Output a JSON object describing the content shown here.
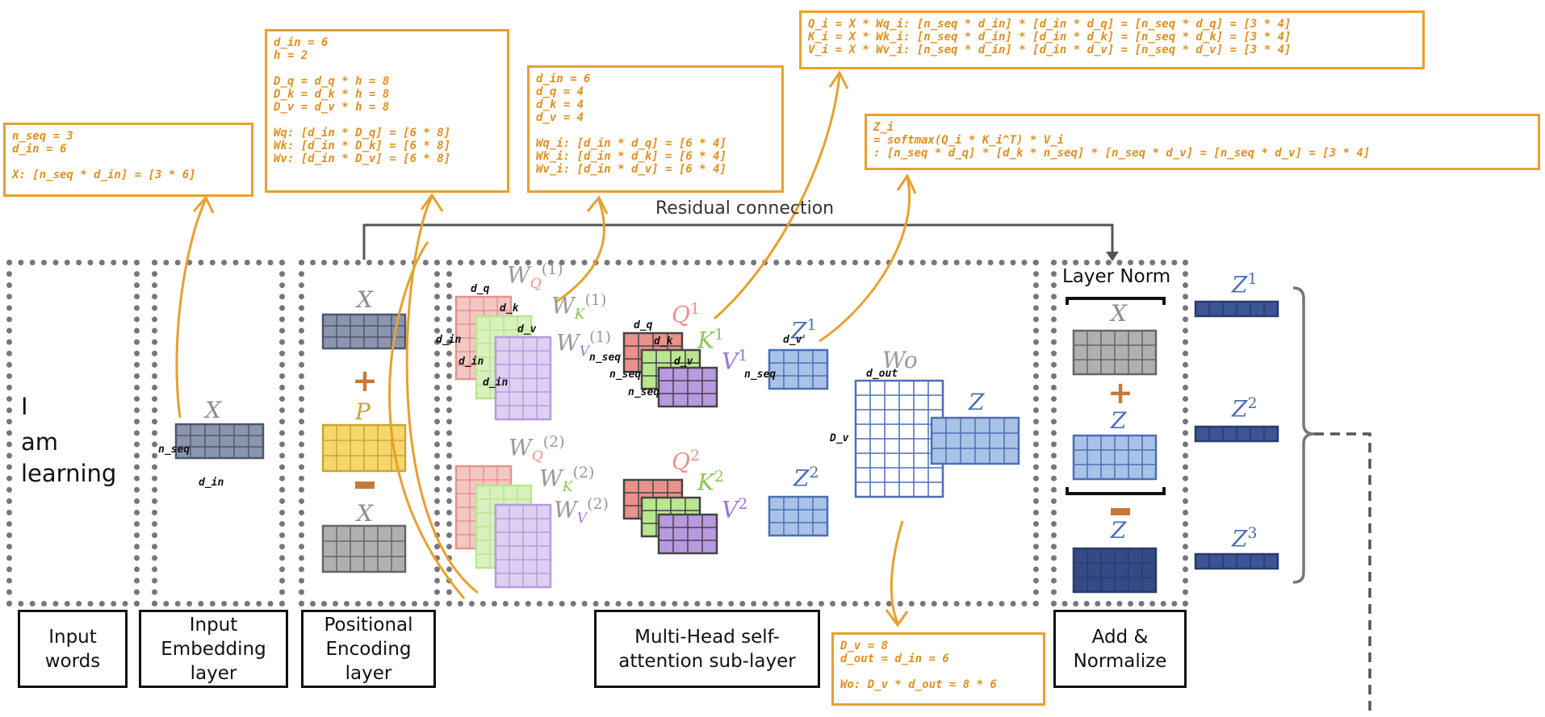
{
  "notes": {
    "embed": [
      "n_seq = 3",
      "d_in = 6",
      "",
      "X: [n_seq * d_in] = [3 * 6]"
    ],
    "pos": [
      "d_in = 6",
      "h = 2",
      "",
      "D_q = d_q * h = 8",
      "D_k = d_k * h = 8",
      "D_v = d_v * h = 8",
      "",
      "Wq: [d_in * D_q] = [6 * 8]",
      "Wk: [d_in * D_k] = [6 * 8]",
      "Wv: [d_in * D_v] = [6 * 8]"
    ],
    "heads": [
      "d_in = 6",
      "d_q = 4",
      "d_k = 4",
      "d_v = 4",
      "",
      "Wq_i: [d_in * d_q] = [6 * 4]",
      "Wk_i: [d_in * d_k] = [6 * 4]",
      "Wv_i: [d_in * d_v] = [6 * 4]"
    ],
    "qkv": [
      "Q_i = X * Wq_i: [n_seq * d_in] * [d_in * d_q] = [n_seq * d_q] = [3 * 4]",
      "K_i = X * Wk_i: [n_seq * d_in] * [d_in * d_k] = [n_seq * d_k] = [3 * 4]",
      "V_i = X * Wv_i: [n_seq * d_in] * [d_in * d_v] = [n_seq * d_v] = [3 * 4]"
    ],
    "z": [
      "Z_i",
      "= softmax(Q_i * K_i^T) * V_i",
      ": [n_seq * d_q] * [d_k * n_seq] * [n_seq * d_v] = [n_seq * d_v] = [3 * 4]"
    ],
    "wo": [
      "D_v = 8",
      "d_out = d_in = 6",
      "",
      "Wo: D_v * d_out = 8 * 6"
    ]
  },
  "residual_label": "Residual connection",
  "layer_norm_label": "Layer Norm",
  "input_words": [
    "I",
    "am",
    "learning"
  ],
  "bottom_labels": {
    "input_words": "Input words",
    "embedding": "Input Embedding layer",
    "positional": "Positional Encoding layer",
    "mhsa": "Multi-Head self-attention sub-layer",
    "add_norm": "Add & Normalize"
  },
  "symbols": {
    "x": "X",
    "p": "P",
    "z": "Z",
    "w": "W",
    "q": "Q",
    "k": "K",
    "v": "V",
    "o": "O",
    "sup1": "(1)",
    "sup2": "(2)",
    "one": "1",
    "two": "2",
    "three": "3",
    "plus": "+",
    "minus": "−",
    "Wo": "Wo"
  },
  "dims": {
    "n_seq": "n_seq",
    "d_in": "d_in",
    "d_q": "d_q",
    "d_k": "d_k",
    "d_v": "d_v",
    "d_out": "d_out",
    "D_v": "D_v"
  },
  "colors": {
    "annotation": "#e8a030",
    "grid_x": "#8b96ad",
    "grid_p": "#f5d76e",
    "grid_gray": "#b0b0b0",
    "grid_z": "#a9c2e8",
    "grid_z_dark": "#344a86",
    "q": "#e8928c",
    "k": "#b9e68f",
    "v": "#b89ae0"
  }
}
